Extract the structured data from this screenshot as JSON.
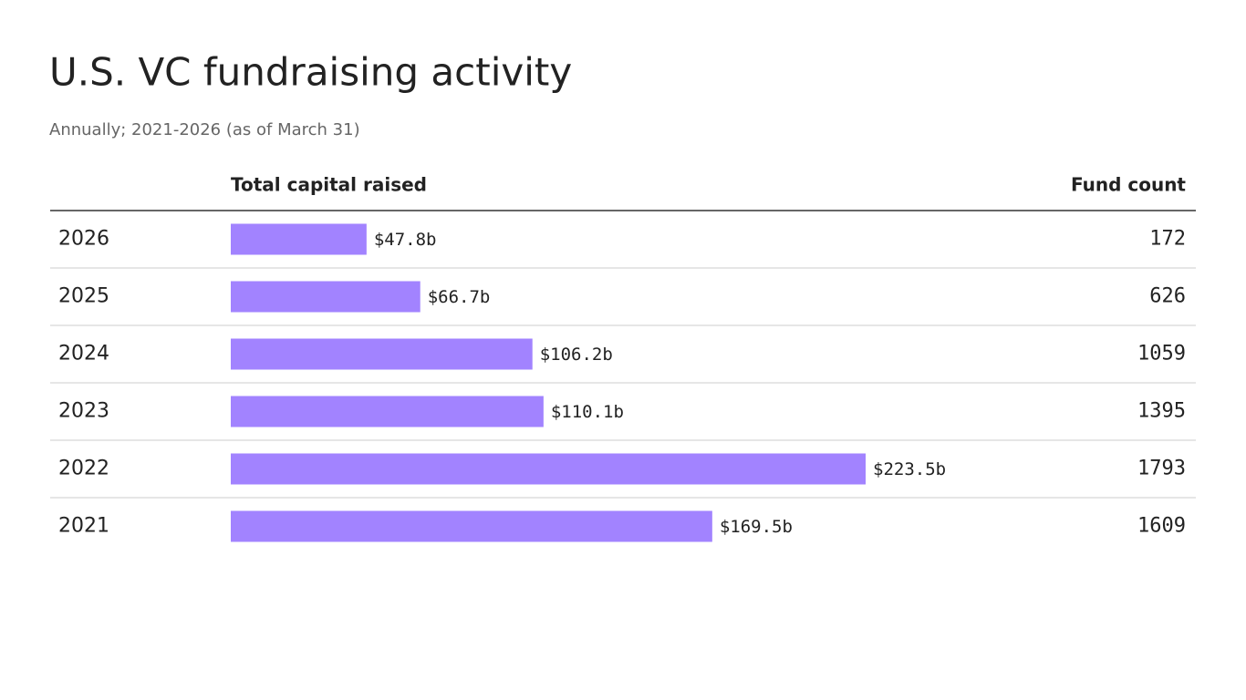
{
  "chart_data": {
    "type": "bar",
    "orientation": "horizontal",
    "title": "U.S. VC fundraising activity",
    "subtitle": "Annually; 2021-2026 (as of March 31)",
    "column_labels": [
      "Total capital raised",
      "Fund count"
    ],
    "categories": [
      "2026",
      "2025",
      "2024",
      "2023",
      "2022",
      "2021"
    ],
    "values": [
      47.8,
      66.7,
      106.2,
      110.1,
      223.5,
      169.5
    ],
    "value_labels": [
      "$47.8b",
      "$66.7b",
      "$106.2b",
      "$110.1b",
      "$223.5b",
      "$169.5b"
    ],
    "fund_count": [
      172,
      626,
      1059,
      1395,
      1793,
      1609
    ],
    "color": "#a283ff"
  }
}
